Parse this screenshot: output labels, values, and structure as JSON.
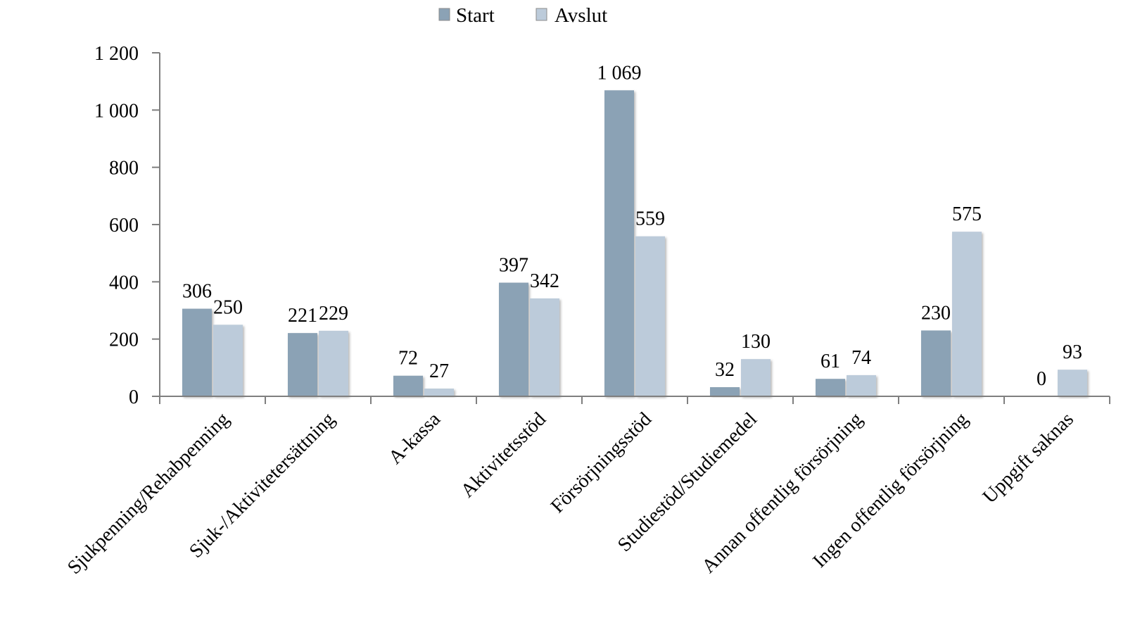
{
  "chart_data": {
    "type": "bar",
    "title": "",
    "xlabel": "",
    "ylabel": "",
    "categories": [
      "Sjukpenning/Rehabpenning",
      "Sjuk-/Aktivitetersättning",
      "A-kassa",
      "Aktivitetsstöd",
      "Försörjningsstöd",
      "Studiestöd/Studiemedel",
      "Annan offentlig försörjning",
      "Ingen offentlig försörjning",
      "Uppgift saknas"
    ],
    "series": [
      {
        "name": "Start",
        "color": "#8ba2b5",
        "values": [
          306,
          221,
          72,
          397,
          1069,
          32,
          61,
          230,
          0
        ],
        "labels": [
          "306",
          "221",
          "72",
          "397",
          "1 069",
          "32",
          "61",
          "230",
          "0"
        ]
      },
      {
        "name": "Avslut",
        "color": "#bccbda",
        "values": [
          250,
          229,
          27,
          342,
          559,
          130,
          74,
          575,
          93
        ],
        "labels": [
          "250",
          "229",
          "27",
          "342",
          "559",
          "130",
          "74",
          "575",
          "93"
        ]
      }
    ],
    "ylim": [
      0,
      1200
    ],
    "yticks": [
      0,
      200,
      400,
      600,
      800,
      1000,
      1200
    ],
    "ytick_labels": [
      "0",
      "200",
      "400",
      "600",
      "800",
      "1 000",
      "1 200"
    ],
    "grid": false,
    "legend_position": "top-center",
    "axis_color": "#7f7f7f"
  }
}
